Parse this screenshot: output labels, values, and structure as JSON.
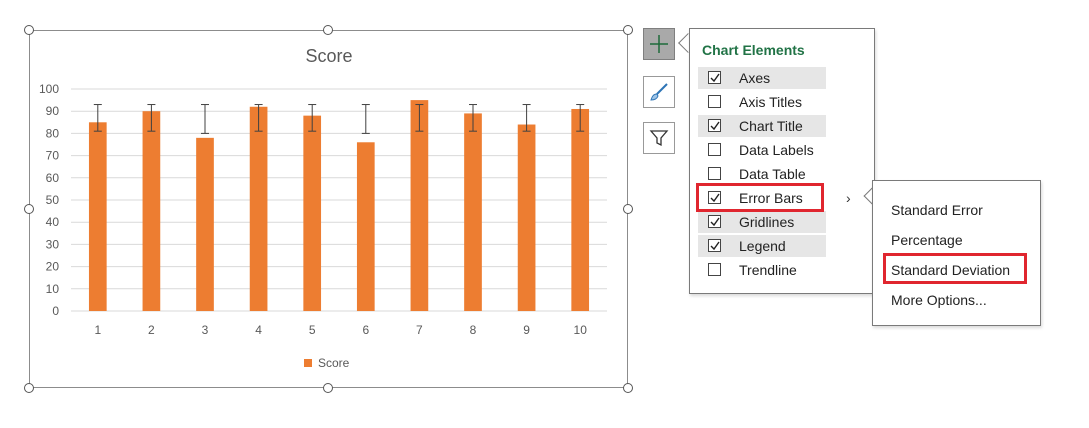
{
  "chart_data": {
    "type": "bar",
    "title": "Score",
    "categories": [
      "1",
      "2",
      "3",
      "4",
      "5",
      "6",
      "7",
      "8",
      "9",
      "10"
    ],
    "series": [
      {
        "name": "Score",
        "values": [
          85,
          90,
          78,
          92,
          88,
          76,
          95,
          89,
          84,
          91
        ],
        "error_bars": "standard-deviation"
      }
    ],
    "error_bar_ranges": [
      [
        81,
        93
      ],
      [
        81,
        93
      ],
      [
        80,
        93
      ],
      [
        81,
        93
      ],
      [
        81,
        93
      ],
      [
        80,
        93
      ],
      [
        81,
        93
      ],
      [
        81,
        93
      ],
      [
        81,
        93
      ],
      [
        81,
        93
      ]
    ],
    "y_ticks": [
      "0",
      "10",
      "20",
      "30",
      "40",
      "50",
      "60",
      "70",
      "80",
      "90",
      "100"
    ],
    "ylim": [
      0,
      100
    ],
    "grid": true,
    "legend_position": "bottom",
    "bar_color": "#ED7D31"
  },
  "side_buttons": {
    "chart_elements_icon": "plus-icon",
    "chart_styles_icon": "paintbrush-icon",
    "chart_filters_icon": "funnel-icon"
  },
  "panel": {
    "title": "Chart Elements",
    "items": [
      {
        "label": "Axes",
        "checked": true
      },
      {
        "label": "Axis Titles",
        "checked": false
      },
      {
        "label": "Chart Title",
        "checked": true
      },
      {
        "label": "Data Labels",
        "checked": false
      },
      {
        "label": "Data Table",
        "checked": false
      },
      {
        "label": "Error Bars",
        "checked": true
      },
      {
        "label": "Gridlines",
        "checked": true
      },
      {
        "label": "Legend",
        "checked": true
      },
      {
        "label": "Trendline",
        "checked": false
      }
    ]
  },
  "submenu": {
    "items": [
      "Standard Error",
      "Percentage",
      "Standard Deviation",
      "More Options..."
    ]
  },
  "colors": {
    "accent_green": "#217346",
    "highlight_red": "#E0262F",
    "bar_orange": "#ED7D31"
  }
}
